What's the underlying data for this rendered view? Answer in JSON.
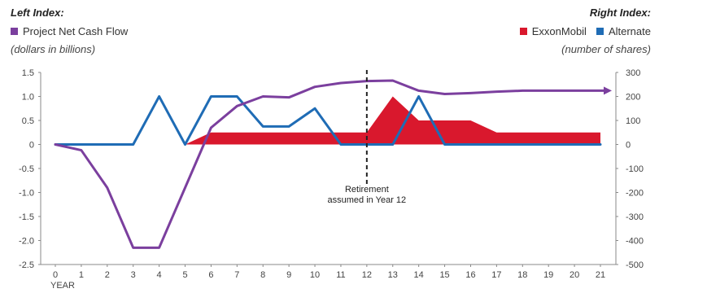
{
  "header": {
    "left_index_label": "Left Index:",
    "right_index_label": "Right Index:",
    "left_unit": "(dollars in billions)",
    "right_unit": "(number of shares)"
  },
  "colors": {
    "purple": "#7b3f9e",
    "red": "#d9182d",
    "blue": "#1f6cb5",
    "axis": "#888888",
    "dashed": "#222222"
  },
  "chart_data": {
    "type": "line",
    "xlabel": "YEAR",
    "x": [
      0,
      1,
      2,
      3,
      4,
      5,
      6,
      7,
      8,
      9,
      10,
      11,
      12,
      13,
      14,
      15,
      16,
      17,
      18,
      19,
      20,
      21
    ],
    "xticks": [
      "0",
      "1",
      "2",
      "3",
      "4",
      "5",
      "6",
      "7",
      "8",
      "9",
      "10",
      "11",
      "12",
      "13",
      "14",
      "15",
      "16",
      "17",
      "18",
      "19",
      "20",
      "21"
    ],
    "left_axis": {
      "ylim": [
        -2.5,
        1.5
      ],
      "ticks": [
        1.5,
        1.0,
        0.5,
        0,
        -0.5,
        -1.0,
        -1.5,
        -2.0,
        -2.5
      ],
      "tick_labels": [
        "1.5",
        "1.0",
        "0.5",
        "0",
        "-0.5",
        "-1.0",
        "-1.5",
        "-2.0",
        "-2.5"
      ]
    },
    "right_axis": {
      "ylim": [
        -500,
        300
      ],
      "ticks": [
        300,
        200,
        100,
        0,
        -100,
        -200,
        -300,
        -400,
        -500
      ],
      "tick_labels": [
        "300",
        "200",
        "100",
        "0",
        "-100",
        "-200",
        "-300",
        "-400",
        "-500"
      ]
    },
    "series": [
      {
        "name": "Project Net Cash Flow",
        "axis": "left",
        "kind": "line",
        "color": "#7b3f9e",
        "values": [
          0,
          -0.12,
          -0.9,
          -2.15,
          -2.15,
          -0.9,
          0.35,
          0.8,
          1.0,
          0.98,
          1.2,
          1.28,
          1.32,
          1.33,
          1.12,
          1.05,
          1.07,
          1.1,
          1.12,
          1.12,
          1.12,
          1.12
        ],
        "end_arrow": true
      },
      {
        "name": "ExxonMobil",
        "axis": "right",
        "kind": "area",
        "color": "#d9182d",
        "values": [
          0,
          0,
          0,
          0,
          0,
          0,
          50,
          50,
          50,
          50,
          50,
          50,
          50,
          200,
          100,
          100,
          100,
          50,
          50,
          50,
          50,
          50
        ]
      },
      {
        "name": "Alternate",
        "axis": "right",
        "kind": "line",
        "color": "#1f6cb5",
        "values": [
          0,
          0,
          0,
          0,
          200,
          0,
          200,
          200,
          75,
          75,
          150,
          0,
          0,
          0,
          200,
          0,
          0,
          0,
          0,
          0,
          0,
          0
        ]
      }
    ],
    "annotations": [
      {
        "x": 12,
        "kind": "dashed-vertical-line",
        "text_lines": [
          "Retirement",
          "assumed in Year 12"
        ]
      }
    ],
    "grid": false
  }
}
